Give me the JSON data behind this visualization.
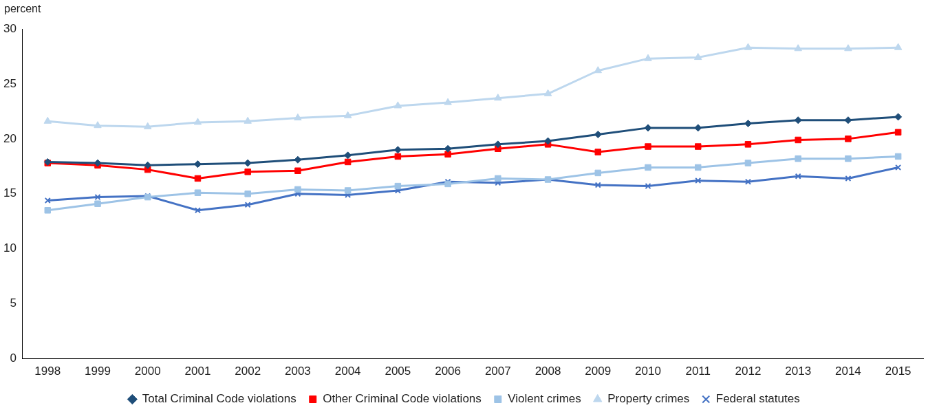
{
  "chart_data": {
    "type": "line",
    "ylabel": "percent",
    "categories": [
      "1998",
      "1999",
      "2000",
      "2001",
      "2002",
      "2003",
      "2004",
      "2005",
      "2006",
      "2007",
      "2008",
      "2009",
      "2010",
      "2011",
      "2012",
      "2013",
      "2014",
      "2015"
    ],
    "ylim": [
      0,
      30
    ],
    "yticks": [
      0,
      5,
      10,
      15,
      20,
      25,
      30
    ],
    "grid": false,
    "legend": "bottom",
    "line_style": "solid",
    "series": [
      {
        "name": "Total Criminal Code violations",
        "color": "#1f4e79",
        "marker": "diamond",
        "values": [
          17.9,
          17.8,
          17.6,
          17.7,
          17.8,
          18.1,
          18.5,
          19.0,
          19.1,
          19.5,
          19.8,
          20.4,
          21.0,
          21.0,
          21.4,
          21.7,
          21.7,
          22.0
        ]
      },
      {
        "name": "Other Criminal Code violations",
        "color": "#ff0000",
        "marker": "square",
        "values": [
          17.8,
          17.6,
          17.2,
          16.4,
          17.0,
          17.1,
          17.9,
          18.4,
          18.6,
          19.1,
          19.5,
          18.8,
          19.3,
          19.3,
          19.5,
          19.9,
          20.0,
          20.6
        ]
      },
      {
        "name": "Violent crimes",
        "color": "#9dc3e6",
        "marker": "square",
        "values": [
          13.5,
          14.1,
          14.7,
          15.1,
          15.0,
          15.4,
          15.3,
          15.7,
          15.9,
          16.4,
          16.3,
          16.9,
          17.4,
          17.4,
          17.8,
          18.2,
          18.2,
          18.4
        ]
      },
      {
        "name": "Property crimes",
        "color": "#bdd7ee",
        "marker": "triangle",
        "values": [
          21.6,
          21.2,
          21.1,
          21.5,
          21.6,
          21.9,
          22.1,
          23.0,
          23.3,
          23.7,
          24.1,
          26.2,
          27.3,
          27.4,
          28.3,
          28.2,
          28.2,
          28.3
        ]
      },
      {
        "name": "Federal statutes",
        "color": "#4472c4",
        "marker": "cross",
        "values": [
          14.4,
          14.7,
          14.8,
          13.5,
          14.0,
          15.0,
          14.9,
          15.3,
          16.1,
          16.0,
          16.3,
          15.8,
          15.7,
          16.2,
          16.1,
          16.6,
          16.4,
          17.4
        ]
      }
    ]
  }
}
